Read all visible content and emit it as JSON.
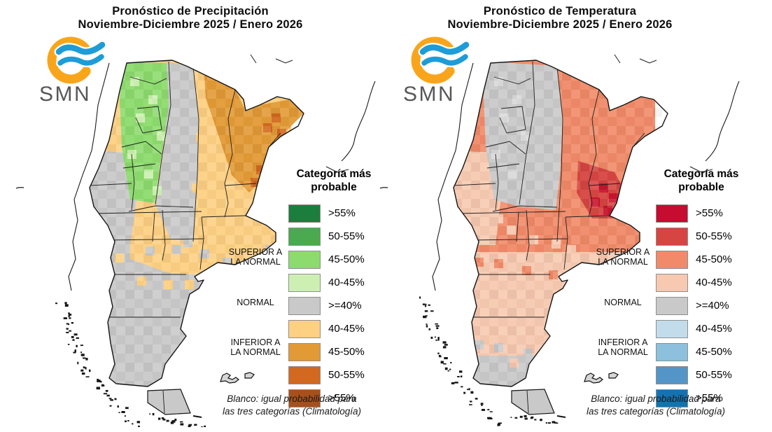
{
  "canvas": {
    "background": "#ffffff"
  },
  "panels": [
    {
      "id": "precipitacion",
      "title_line1": "Pronóstico de Precipitación",
      "title_line2": "Noviembre-Diciembre 2025 / Enero 2026",
      "logo": {
        "text": "SMN",
        "ring_color": "#F9A51B",
        "wave_color": "#1E9CD7",
        "text_color": "#57575A"
      },
      "legend": {
        "header_line1": "Categoría más",
        "header_line2": "probable",
        "groups": [
          {
            "line1": "SUPERIOR A",
            "line2": "LA NORMAL"
          },
          {
            "line1": "NORMAL",
            "line2": ""
          },
          {
            "line1": "INFERIOR A",
            "line2": "LA NORMAL"
          }
        ],
        "items": [
          {
            "label": ">55%",
            "color": "#1B7E3C"
          },
          {
            "label": "50-55%",
            "color": "#4BA94F"
          },
          {
            "label": "45-50%",
            "color": "#8DDB6E"
          },
          {
            "label": "40-45%",
            "color": "#CDF0B2"
          },
          {
            "label": ">=40%",
            "color": "#C9C9C9"
          },
          {
            "label": "40-45%",
            "color": "#FDD083"
          },
          {
            "label": "45-50%",
            "color": "#E29A36"
          },
          {
            "label": "50-55%",
            "color": "#D2691F"
          },
          {
            "label": ">55%",
            "color": "#A8501B"
          }
        ],
        "footnote_line1": "Blanco: igual probabilidad para",
        "footnote_line2": "las tres categorías (Climatología)"
      },
      "map": {
        "region": "Argentina",
        "zones": {
          "base": "#FDD083",
          "northwest": "#8DDB6E",
          "northwest_light": "#CDF0B2",
          "central_strip": "#C9C9C9",
          "cuyo_west": "#C9C9C9",
          "northeast": "#E29A36",
          "northeast_dark": "#D2691F",
          "pampa_east": "#FDD083",
          "patagonia_band": "#FDD083",
          "south": "#C9C9C9"
        }
      }
    },
    {
      "id": "temperatura",
      "title_line1": "Pronóstico de Temperatura",
      "title_line2": "Noviembre-Diciembre 2025 / Enero 2026",
      "logo": {
        "text": "SMN",
        "ring_color": "#F9A51B",
        "wave_color": "#1E9CD7",
        "text_color": "#57575A"
      },
      "legend": {
        "header_line1": "Categoría más",
        "header_line2": "probable",
        "groups": [
          {
            "line1": "SUPERIOR A",
            "line2": "LA NORMAL"
          },
          {
            "line1": "NORMAL",
            "line2": ""
          },
          {
            "line1": "INFERIOR A",
            "line2": "LA NORMAL"
          }
        ],
        "items": [
          {
            "label": ">55%",
            "color": "#C60C30"
          },
          {
            "label": "50-55%",
            "color": "#D64541"
          },
          {
            "label": "45-50%",
            "color": "#F08A68"
          },
          {
            "label": "40-45%",
            "color": "#F7C9B0"
          },
          {
            "label": ">=40%",
            "color": "#C9C9C9"
          },
          {
            "label": "40-45%",
            "color": "#C2DCEC"
          },
          {
            "label": "45-50%",
            "color": "#8CC0DD"
          },
          {
            "label": "50-55%",
            "color": "#5495C7"
          },
          {
            "label": ">55%",
            "color": "#1572B0"
          }
        ],
        "footnote_line1": "Blanco: igual probabilidad para",
        "footnote_line2": "las tres categorías (Climatología)"
      },
      "map": {
        "region": "Argentina",
        "zones": {
          "base": "#F08A68",
          "northwest": "#C9C9C9",
          "northwest_light": "#DADADA",
          "cuyo_west": "#F7C9B0",
          "cluster": "#D64541",
          "cluster_dark": "#C9142F",
          "patagonia_mid": "#F7C9B0",
          "south": "#C9C9C9"
        }
      }
    }
  ]
}
